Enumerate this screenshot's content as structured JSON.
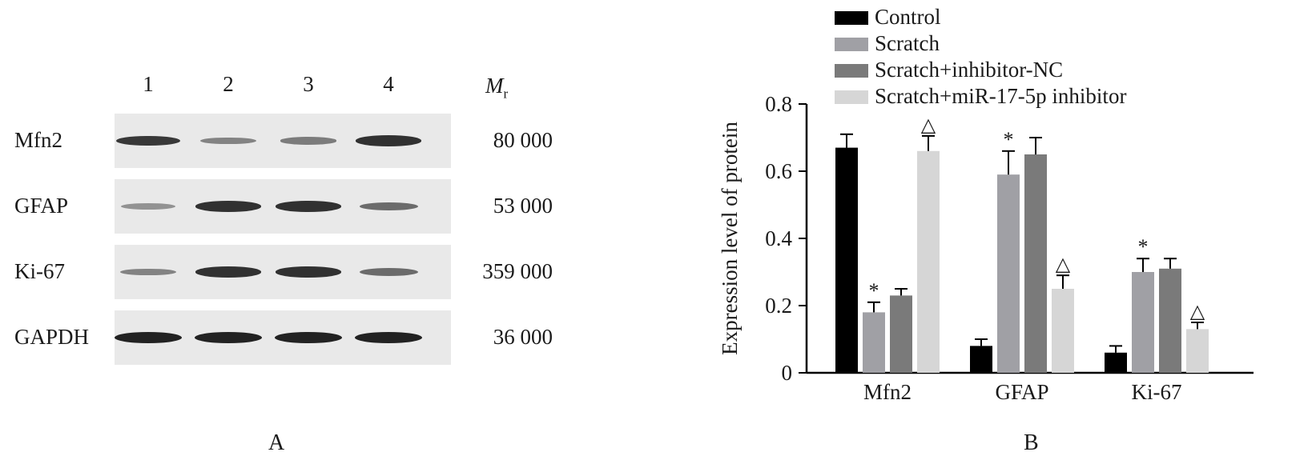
{
  "panel_a": {
    "lanes": [
      "1",
      "2",
      "3",
      "4"
    ],
    "mr_label": "M",
    "mr_sub": "r",
    "rows": [
      {
        "label": "Mfn2",
        "mw": "80 000",
        "intensity": [
          0.85,
          0.35,
          0.4,
          0.9
        ]
      },
      {
        "label": "GFAP",
        "mw": "53 000",
        "intensity": [
          0.25,
          0.9,
          0.9,
          0.5
        ]
      },
      {
        "label": "Ki-67",
        "mw": "359 000",
        "intensity": [
          0.35,
          0.9,
          0.9,
          0.5
        ]
      },
      {
        "label": "GAPDH",
        "mw": "36 000",
        "intensity": [
          1.0,
          1.0,
          1.0,
          1.0
        ]
      }
    ],
    "panel_label": "A"
  },
  "panel_b": {
    "panel_label": "B",
    "colors": [
      "#000000",
      "#a0a0a5",
      "#7a7a7a",
      "#d6d6d6"
    ]
  },
  "chart_data": {
    "type": "bar",
    "categories": [
      "Mfn2",
      "GFAP",
      "Ki-67"
    ],
    "ylabel": "Expression level of protein",
    "ylim": [
      0,
      0.8
    ],
    "yticks": [
      0,
      0.2,
      0.4,
      0.6,
      0.8
    ],
    "ytick_labels": [
      "0",
      "0.2",
      "0.4",
      "0.6",
      "0.8"
    ],
    "legend_position": "top",
    "series": [
      {
        "name": "Control",
        "values": [
          0.67,
          0.08,
          0.06
        ],
        "errors": [
          0.04,
          0.02,
          0.02
        ],
        "marks": [
          "",
          "",
          ""
        ]
      },
      {
        "name": "Scratch",
        "values": [
          0.18,
          0.59,
          0.3
        ],
        "errors": [
          0.03,
          0.07,
          0.04
        ],
        "marks": [
          "*",
          "*",
          "*"
        ]
      },
      {
        "name": "Scratch+inhibitor-NC",
        "values": [
          0.23,
          0.65,
          0.31
        ],
        "errors": [
          0.02,
          0.05,
          0.03
        ],
        "marks": [
          "",
          "",
          ""
        ]
      },
      {
        "name": "Scratch+miR-17-5p inhibitor",
        "values": [
          0.66,
          0.25,
          0.13
        ],
        "errors": [
          0.045,
          0.04,
          0.02
        ],
        "marks": [
          "△",
          "△",
          "△"
        ]
      }
    ]
  }
}
